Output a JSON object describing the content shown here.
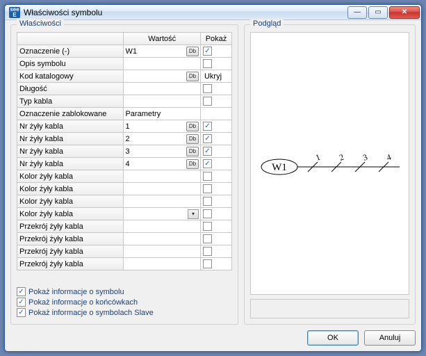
{
  "window": {
    "title": "Właściwości symbolu",
    "icon_text": "see E"
  },
  "section": {
    "left_legend": "Właściwości",
    "right_legend": "Podgląd"
  },
  "columns": {
    "value": "Wartość",
    "show": "Pokaż"
  },
  "db_label": "Db",
  "hide_label": "Ukryj",
  "rows": [
    {
      "prop": "Oznaczenie (-)",
      "value": "W1",
      "db": true,
      "checkbox": true,
      "checked": true,
      "dropdown": false,
      "hide_text": false
    },
    {
      "prop": "Opis symbolu",
      "value": "",
      "db": false,
      "checkbox": true,
      "checked": false,
      "dropdown": false,
      "hide_text": false
    },
    {
      "prop": "Kod katalogowy",
      "value": "",
      "db": true,
      "checkbox": false,
      "checked": false,
      "dropdown": false,
      "hide_text": true
    },
    {
      "prop": "Długość",
      "value": "",
      "db": false,
      "checkbox": true,
      "checked": false,
      "dropdown": false,
      "hide_text": false
    },
    {
      "prop": "Typ kabla",
      "value": "",
      "db": false,
      "checkbox": true,
      "checked": false,
      "dropdown": false,
      "hide_text": false
    },
    {
      "prop": "Oznaczenie zablokowane",
      "value": "Parametry",
      "db": false,
      "checkbox": false,
      "checked": false,
      "dropdown": false,
      "hide_text": false
    },
    {
      "prop": "Nr żyły kabla",
      "value": "1",
      "db": true,
      "checkbox": true,
      "checked": true,
      "dropdown": false,
      "hide_text": false
    },
    {
      "prop": "Nr żyły kabla",
      "value": "2",
      "db": true,
      "checkbox": true,
      "checked": true,
      "dropdown": false,
      "hide_text": false
    },
    {
      "prop": "Nr żyły kabla",
      "value": "3",
      "db": true,
      "checkbox": true,
      "checked": true,
      "dropdown": false,
      "hide_text": false
    },
    {
      "prop": "Nr żyły kabla",
      "value": "4",
      "db": true,
      "checkbox": true,
      "checked": true,
      "dropdown": false,
      "hide_text": false
    },
    {
      "prop": "Kolor żyły kabla",
      "value": "",
      "db": false,
      "checkbox": true,
      "checked": false,
      "dropdown": false,
      "hide_text": false
    },
    {
      "prop": "Kolor żyły kabla",
      "value": "",
      "db": false,
      "checkbox": true,
      "checked": false,
      "dropdown": false,
      "hide_text": false
    },
    {
      "prop": "Kolor żyły kabla",
      "value": "",
      "db": false,
      "checkbox": true,
      "checked": false,
      "dropdown": false,
      "hide_text": false
    },
    {
      "prop": "Kolor żyły kabla",
      "value": "",
      "db": false,
      "checkbox": true,
      "checked": false,
      "dropdown": true,
      "hide_text": false
    },
    {
      "prop": "Przekrój żyły kabla",
      "value": "",
      "db": false,
      "checkbox": true,
      "checked": false,
      "dropdown": false,
      "hide_text": false
    },
    {
      "prop": "Przekrój żyły kabla",
      "value": "",
      "db": false,
      "checkbox": true,
      "checked": false,
      "dropdown": false,
      "hide_text": false
    },
    {
      "prop": "Przekrój żyły kabla",
      "value": "",
      "db": false,
      "checkbox": true,
      "checked": false,
      "dropdown": false,
      "hide_text": false
    },
    {
      "prop": "Przekrój żyły kabla",
      "value": "",
      "db": false,
      "checkbox": true,
      "checked": false,
      "dropdown": false,
      "hide_text": false
    }
  ],
  "checks": {
    "symbol": "Pokaż informacje o symbolu",
    "ends": "Pokaż informacje o końcówkach",
    "slave": "Pokaż informacje o symbolach Slave"
  },
  "buttons": {
    "ok": "OK",
    "cancel": "Anuluj"
  },
  "preview": {
    "label": "W1",
    "wire_labels": [
      "1",
      "2",
      "3",
      "4"
    ],
    "stroke": "#000000",
    "font_family": "Times New Roman, serif"
  }
}
